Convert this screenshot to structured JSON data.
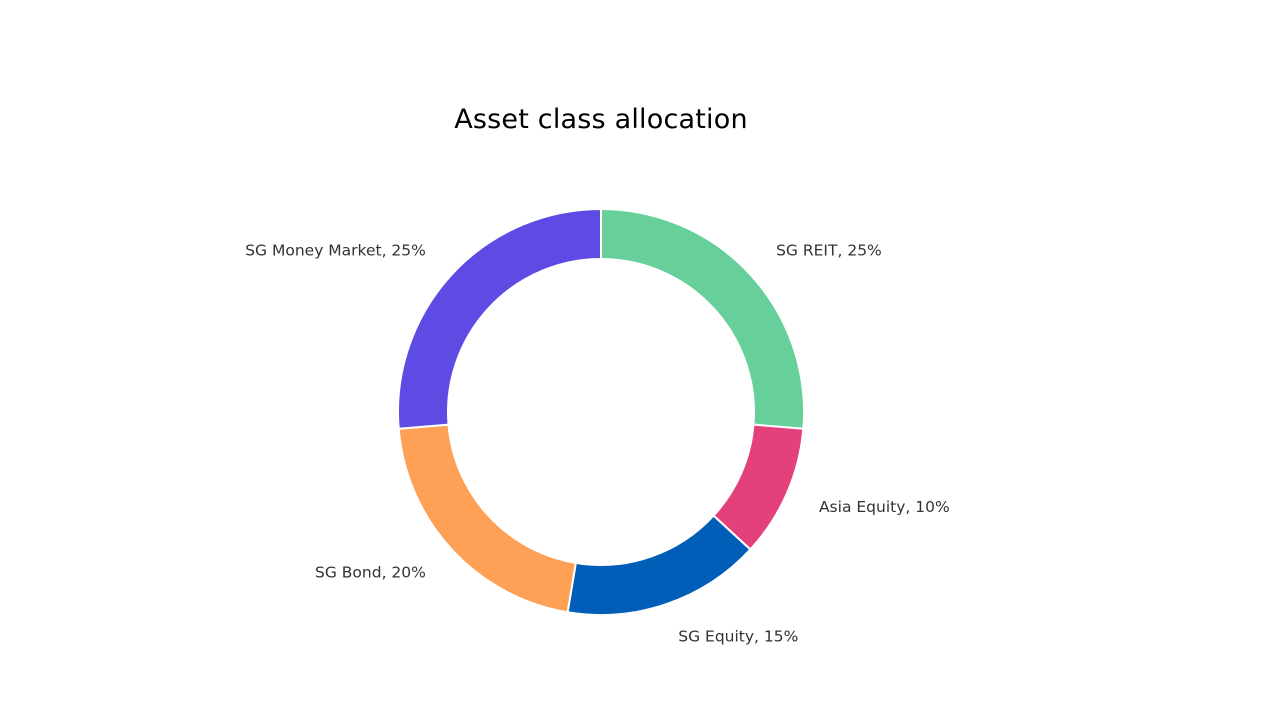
{
  "chart_data": {
    "type": "pie",
    "title": "Asset class allocation",
    "slices": [
      {
        "label": "SG REIT",
        "value": 25,
        "display": "SG REIT, 25%",
        "color": "#67CF9A"
      },
      {
        "label": "Asia Equity",
        "value": 10,
        "display": "Asia Equity, 10%",
        "color": "#E4407B"
      },
      {
        "label": "SG Equity",
        "value": 15,
        "display": "SG Equity, 15%",
        "color": "#005EB8"
      },
      {
        "label": "SG Bond",
        "value": 20,
        "display": "SG Bond, 20%",
        "color": "#FFA057"
      },
      {
        "label": "SG Money Market",
        "value": 25,
        "display": "SG Money Market, 25%",
        "color": "#5E4BE4"
      }
    ],
    "donut": true,
    "legend": "none",
    "start_angle": "top",
    "direction": "clockwise"
  }
}
